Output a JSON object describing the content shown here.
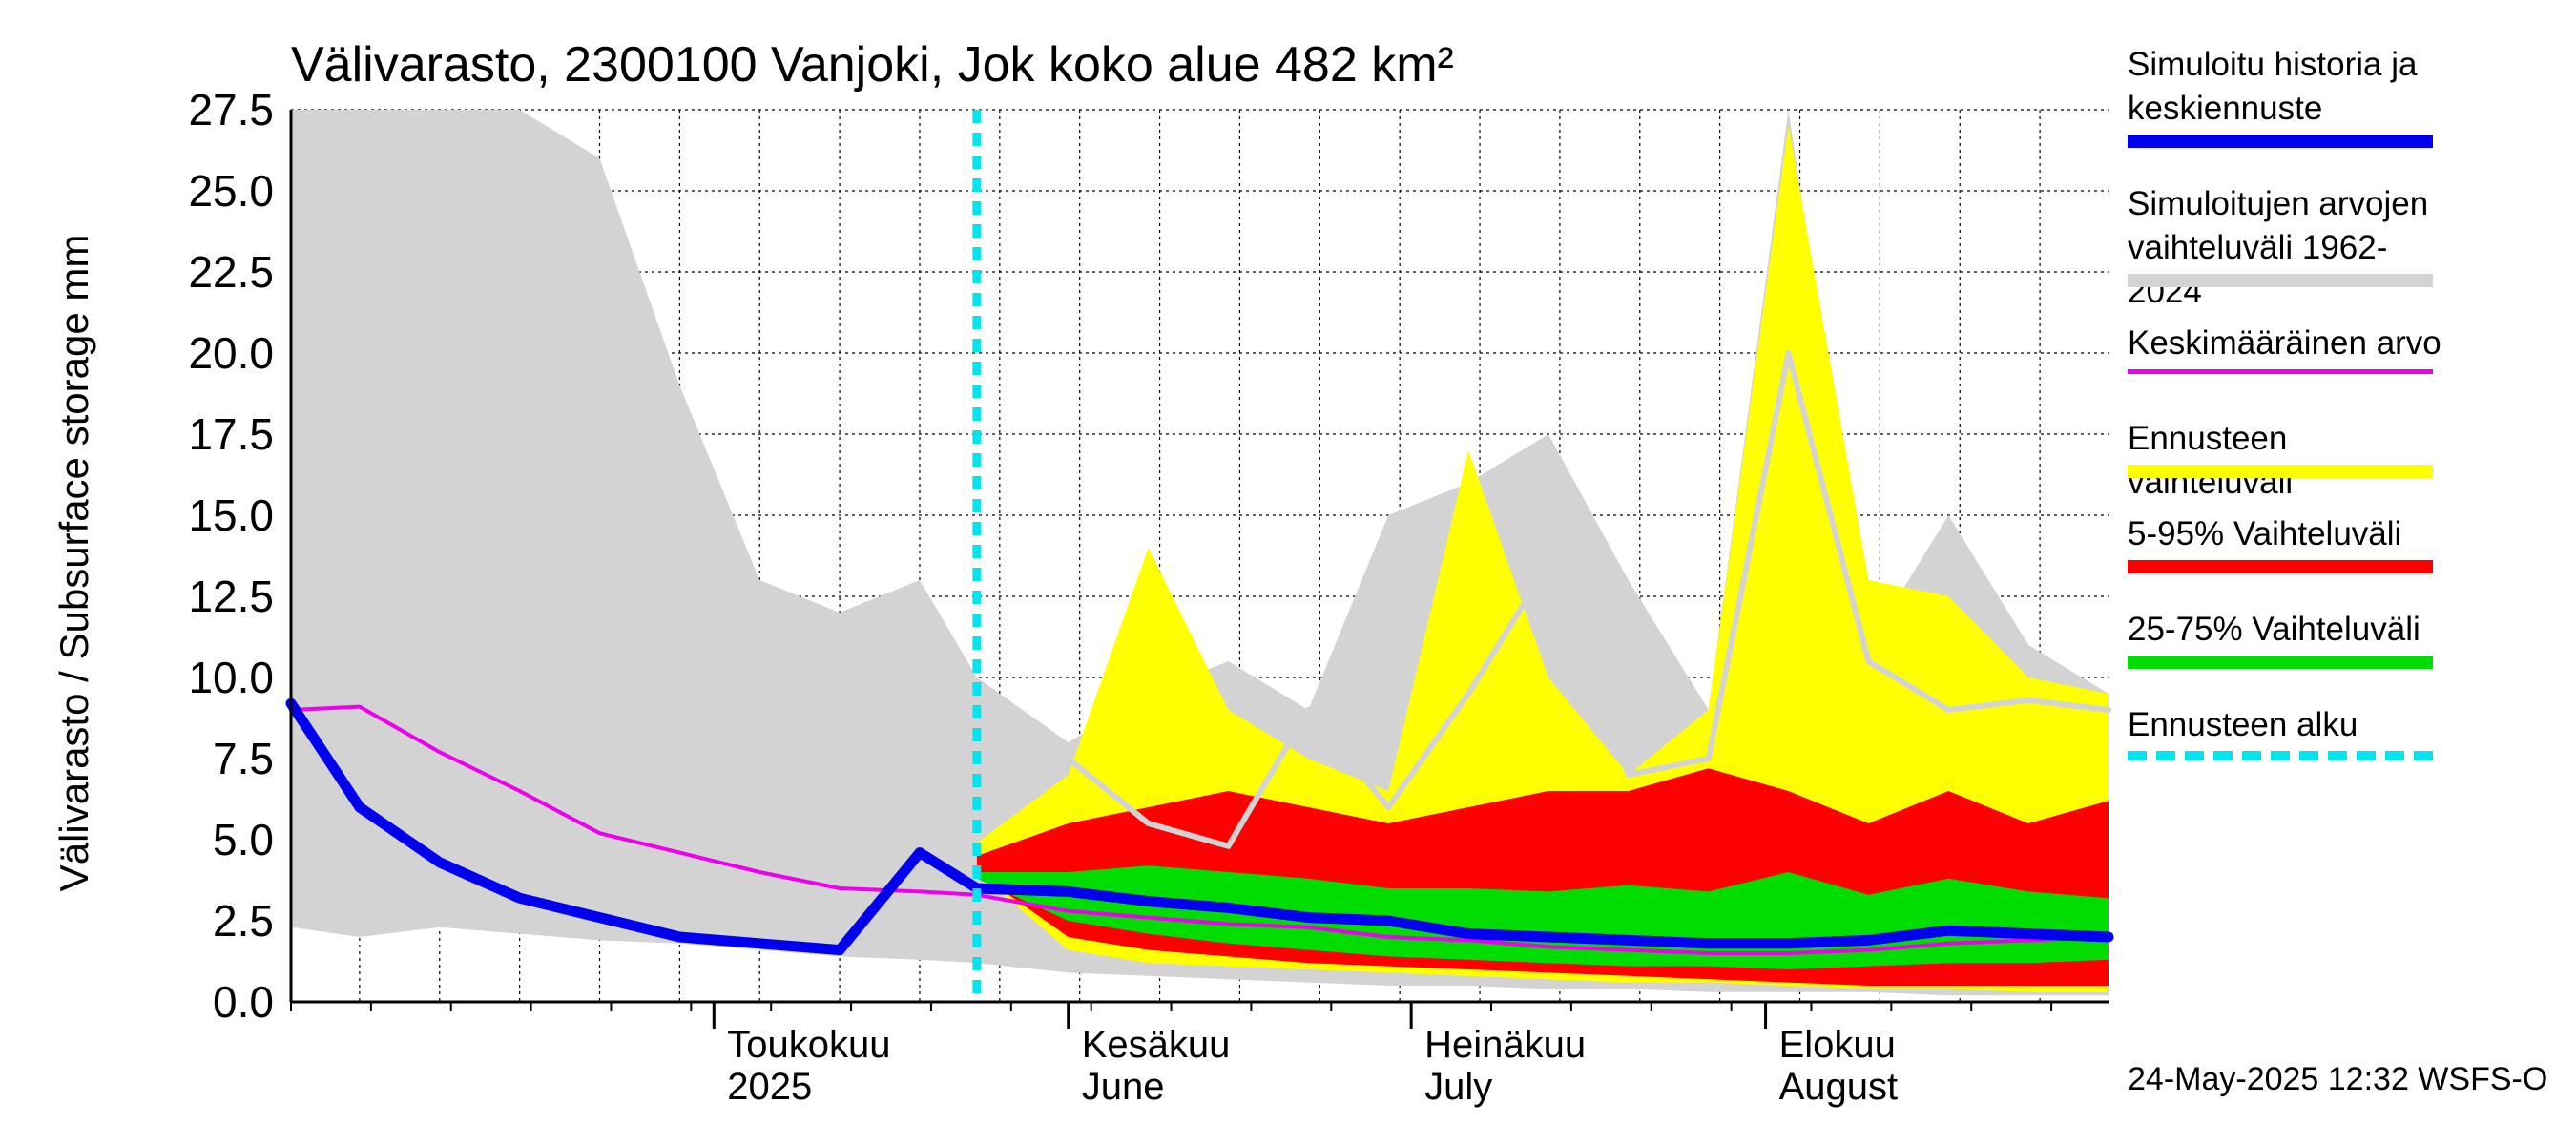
{
  "chart_data": {
    "type": "area",
    "title": "Välivarasto, 2300100 Vanjoki, Jok koko alue 482 km²",
    "ylabel": "Välivarasto / Subsurface storage  mm",
    "xlabel": "",
    "ylim": [
      0,
      27.5
    ],
    "yticks": [
      "0.0",
      "2.5",
      "5.0",
      "7.5",
      "10.0",
      "12.5",
      "15.0",
      "17.5",
      "20.0",
      "22.5",
      "25.0",
      "27.5"
    ],
    "x_range": [
      "2025-03-25",
      "2025-08-31"
    ],
    "grid": true,
    "months": [
      {
        "line1": "Toukokuu",
        "line2": "2025",
        "start": "2025-05-01"
      },
      {
        "line1": "Kesäkuu",
        "line2": "June",
        "start": "2025-06-01"
      },
      {
        "line1": "Heinäkuu",
        "line2": "July",
        "start": "2025-07-01"
      },
      {
        "line1": "Elokuu",
        "line2": "August",
        "start": "2025-08-01"
      }
    ],
    "forecast_start": "2025-05-24",
    "dates": [
      "2025-03-25",
      "2025-03-31",
      "2025-04-07",
      "2025-04-14",
      "2025-04-21",
      "2025-04-28",
      "2025-05-05",
      "2025-05-12",
      "2025-05-19",
      "2025-05-24",
      "2025-06-01",
      "2025-06-08",
      "2025-06-15",
      "2025-06-22",
      "2025-06-29",
      "2025-07-06",
      "2025-07-13",
      "2025-07-20",
      "2025-07-27",
      "2025-08-03",
      "2025-08-10",
      "2025-08-17",
      "2025-08-24",
      "2025-08-31"
    ],
    "series": [
      {
        "name": "Simuloitujen arvojen vaihteluväli 1962-2024",
        "role": "band",
        "color": "#d3d3d3",
        "lower": [
          2.3,
          2.0,
          2.3,
          2.1,
          1.9,
          1.8,
          1.6,
          1.4,
          1.3,
          1.2,
          0.9,
          0.8,
          0.7,
          0.6,
          0.5,
          0.5,
          0.4,
          0.4,
          0.3,
          0.3,
          0.3,
          0.2,
          0.2,
          0.2
        ],
        "upper": [
          27.5,
          27.5,
          27.5,
          27.5,
          26.0,
          19.0,
          13.0,
          12.0,
          13.0,
          10.0,
          8.0,
          9.5,
          10.5,
          9.0,
          15.0,
          16.0,
          17.5,
          13.0,
          9.0,
          27.5,
          11.0,
          15.0,
          11.0,
          9.5
        ]
      },
      {
        "name": "Ennusteen vaihteluväli",
        "role": "band",
        "color": "#ffff00",
        "lower": [
          null,
          null,
          null,
          null,
          null,
          null,
          null,
          null,
          null,
          4.0,
          1.6,
          1.2,
          1.1,
          1.0,
          0.9,
          0.8,
          0.7,
          0.6,
          0.6,
          0.5,
          0.4,
          0.4,
          0.3,
          0.3
        ],
        "upper": [
          null,
          null,
          null,
          null,
          null,
          null,
          null,
          null,
          null,
          4.9,
          7.0,
          14.0,
          9.0,
          7.5,
          6.5,
          17.0,
          10.0,
          7.0,
          9.0,
          27.0,
          13.0,
          12.5,
          10.0,
          9.5
        ]
      },
      {
        "name": "5-95% Vaihteluväli",
        "role": "band",
        "color": "#ff0000",
        "lower": [
          null,
          null,
          null,
          null,
          null,
          null,
          null,
          null,
          null,
          4.0,
          2.0,
          1.6,
          1.4,
          1.2,
          1.1,
          1.0,
          0.9,
          0.8,
          0.7,
          0.6,
          0.5,
          0.5,
          0.5,
          0.5
        ],
        "upper": [
          null,
          null,
          null,
          null,
          null,
          null,
          null,
          null,
          null,
          4.5,
          5.5,
          6.0,
          6.5,
          6.0,
          5.5,
          6.0,
          6.5,
          6.5,
          7.2,
          6.5,
          5.5,
          6.5,
          5.5,
          6.2
        ]
      },
      {
        "name": "25-75% Vaihteluväli",
        "role": "band",
        "color": "#00dd00",
        "lower": [
          null,
          null,
          null,
          null,
          null,
          null,
          null,
          null,
          null,
          3.8,
          2.5,
          2.1,
          1.8,
          1.6,
          1.4,
          1.3,
          1.2,
          1.1,
          1.1,
          1.0,
          1.1,
          1.2,
          1.2,
          1.3
        ],
        "upper": [
          null,
          null,
          null,
          null,
          null,
          null,
          null,
          null,
          null,
          4.0,
          4.0,
          4.2,
          4.0,
          3.8,
          3.5,
          3.5,
          3.4,
          3.6,
          3.4,
          4.0,
          3.3,
          3.8,
          3.4,
          3.2
        ]
      },
      {
        "name": "Keskimääräinen arvo",
        "role": "line",
        "color": "#ee00ee",
        "values": [
          9.0,
          9.1,
          7.7,
          6.5,
          5.2,
          4.6,
          4.0,
          3.5,
          3.4,
          3.3,
          2.8,
          2.6,
          2.4,
          2.3,
          2.0,
          1.9,
          1.7,
          1.6,
          1.5,
          1.5,
          1.6,
          1.8,
          1.9,
          2.0
        ]
      },
      {
        "name": "Simuloitu historia ja keskiennuste",
        "role": "line",
        "color": "#0000ee",
        "values": [
          9.2,
          6.0,
          4.3,
          3.2,
          2.6,
          2.0,
          1.8,
          1.6,
          4.6,
          3.5,
          3.4,
          3.1,
          2.9,
          2.6,
          2.5,
          2.1,
          2.0,
          1.9,
          1.8,
          1.8,
          1.9,
          2.2,
          2.1,
          2.0
        ]
      },
      {
        "name": "",
        "role": "line",
        "color": "#d3d3d3",
        "values": [
          null,
          null,
          null,
          null,
          null,
          null,
          null,
          null,
          null,
          null,
          7.5,
          5.5,
          4.8,
          9.0,
          6.0,
          9.5,
          13.5,
          7.0,
          7.5,
          20.0,
          10.5,
          9.0,
          9.3,
          9.0
        ]
      }
    ]
  },
  "legend": [
    {
      "label": "Simuloitu historia ja\nkeskiennuste",
      "color": "#0000ee",
      "style": "thick"
    },
    {
      "label": "Simuloitujen arvojen\nvaihteluväli 1962-2024",
      "color": "#d3d3d3",
      "style": "thick"
    },
    {
      "label": "Keskimääräinen arvo",
      "color": "#ee00ee",
      "style": "thin"
    },
    {
      "label": "Ennusteen vaihteluväli",
      "color": "#ffff00",
      "style": "thick"
    },
    {
      "label": "5-95% Vaihteluväli",
      "color": "#ff0000",
      "style": "thick"
    },
    {
      "label": "25-75% Vaihteluväli",
      "color": "#00dd00",
      "style": "thick"
    },
    {
      "label": "Ennusteen alku",
      "color": "#00e5ee",
      "style": "dashed"
    }
  ],
  "footer": "24-May-2025 12:32 WSFS-O"
}
